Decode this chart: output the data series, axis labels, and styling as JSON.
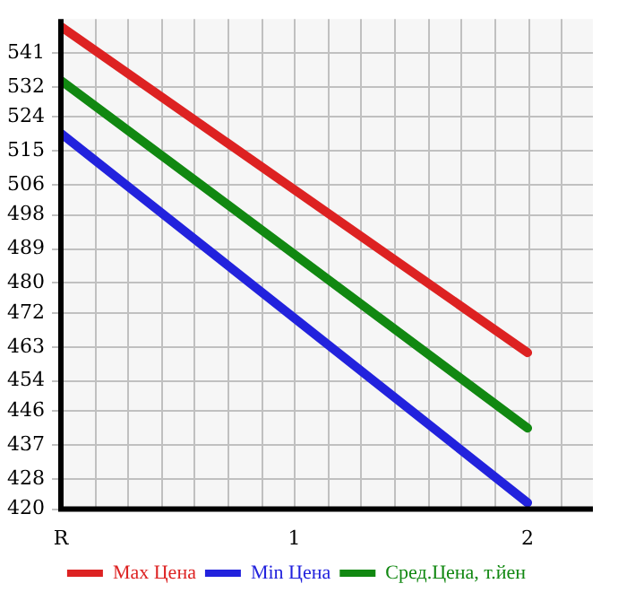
{
  "chart_data": {
    "type": "line",
    "categories": [
      "R",
      "1",
      "2"
    ],
    "series": [
      {
        "name": "Max Цена",
        "color": "#dd2222",
        "values": [
          548,
          null,
          461.5
        ]
      },
      {
        "name": "Min Цена",
        "color": "#2222dd",
        "values": [
          519.7,
          null,
          421.7
        ]
      },
      {
        "name": "Сред.Цена, т.йен",
        "color": "#118811",
        "values": [
          533.7,
          null,
          441.5
        ]
      }
    ],
    "ylim": [
      420,
      550
    ],
    "yticks": [
      420,
      428,
      437,
      446,
      454,
      463,
      472,
      480,
      489,
      498,
      506,
      515,
      524,
      532,
      541
    ],
    "grid": true,
    "legend": "bottom",
    "marker": "none",
    "line_style": "solid"
  }
}
